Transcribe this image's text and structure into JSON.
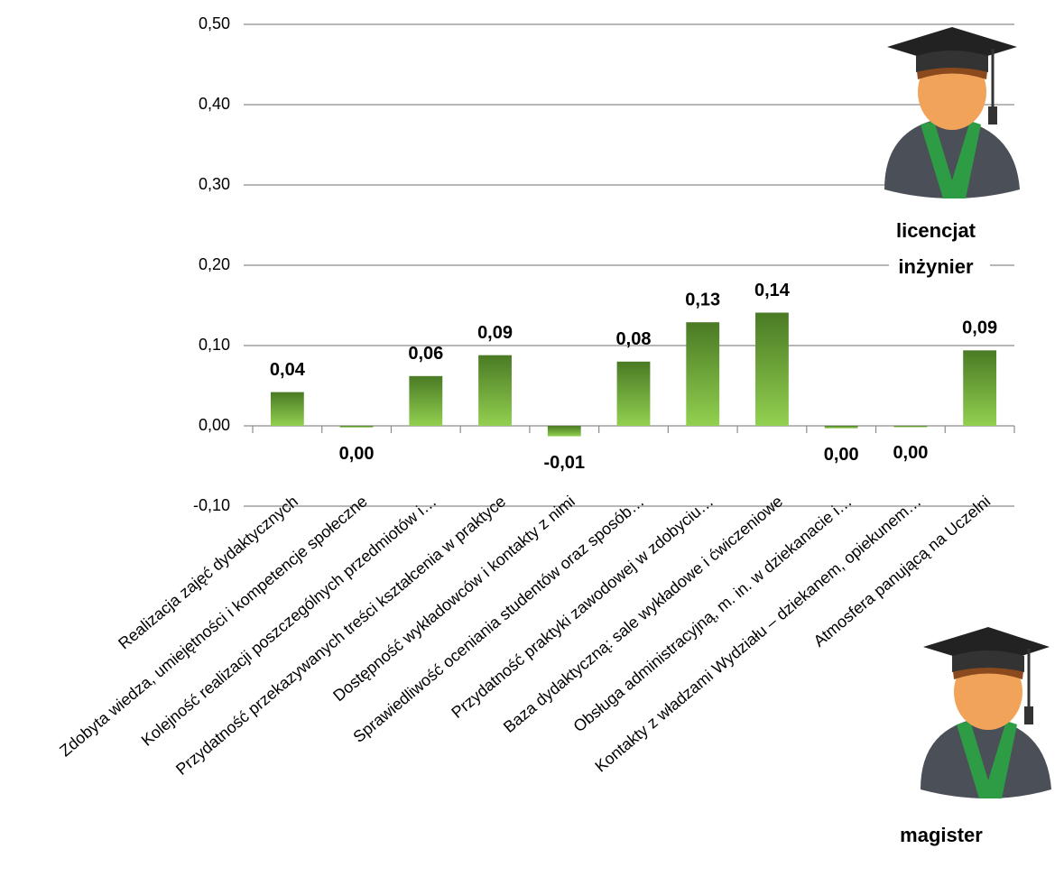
{
  "chart_data": {
    "type": "bar",
    "categories": [
      "Realizacja zajęć dydaktycznych",
      "Zdobyta wiedza, umiejętności  i kompetencje społeczne",
      "Kolejność realizacji poszczególnych przedmiotów i…",
      "Przydatność przekazywanych treści kształcenia w praktyce",
      "Dostępność wykładowców i kontakty z nimi",
      "Sprawiedliwość oceniania studentów oraz sposób…",
      "Przydatność praktyki zawodowej w zdobyciu…",
      "Baza dydaktyczną: sale wykładowe i ćwiczeniowe",
      "Obsługa administracyjną, m. in. w dziekanacie i…",
      "Kontakty z władzami Wydziału – dziekanem, opiekunem…",
      "Atmosfera panującą na Uczelni"
    ],
    "values": [
      0.042,
      -0.002,
      0.062,
      0.088,
      -0.013,
      0.08,
      0.129,
      0.141,
      -0.003,
      -0.001,
      0.094
    ],
    "value_labels": [
      "0,04",
      "0,00",
      "0,06",
      "0,09",
      "-0,01",
      "0,08",
      "0,13",
      "0,14",
      "0,00",
      "0,00",
      "0,09"
    ],
    "color": "#92d050",
    "ylim": [
      -0.1,
      0.5
    ],
    "yticks": [
      {
        "value": -0.1,
        "label": "-0,10"
      },
      {
        "value": 0,
        "label": "0,00"
      },
      {
        "value": 0.1,
        "label": "0,10"
      },
      {
        "value": 0.2,
        "label": "0,20"
      },
      {
        "value": 0.3,
        "label": "0,30"
      },
      {
        "value": 0.4,
        "label": "0,40"
      },
      {
        "value": 0.5,
        "label": "0,50"
      }
    ],
    "grid": true,
    "annotations": [
      "licencjat",
      "inżynier",
      "magister"
    ]
  }
}
